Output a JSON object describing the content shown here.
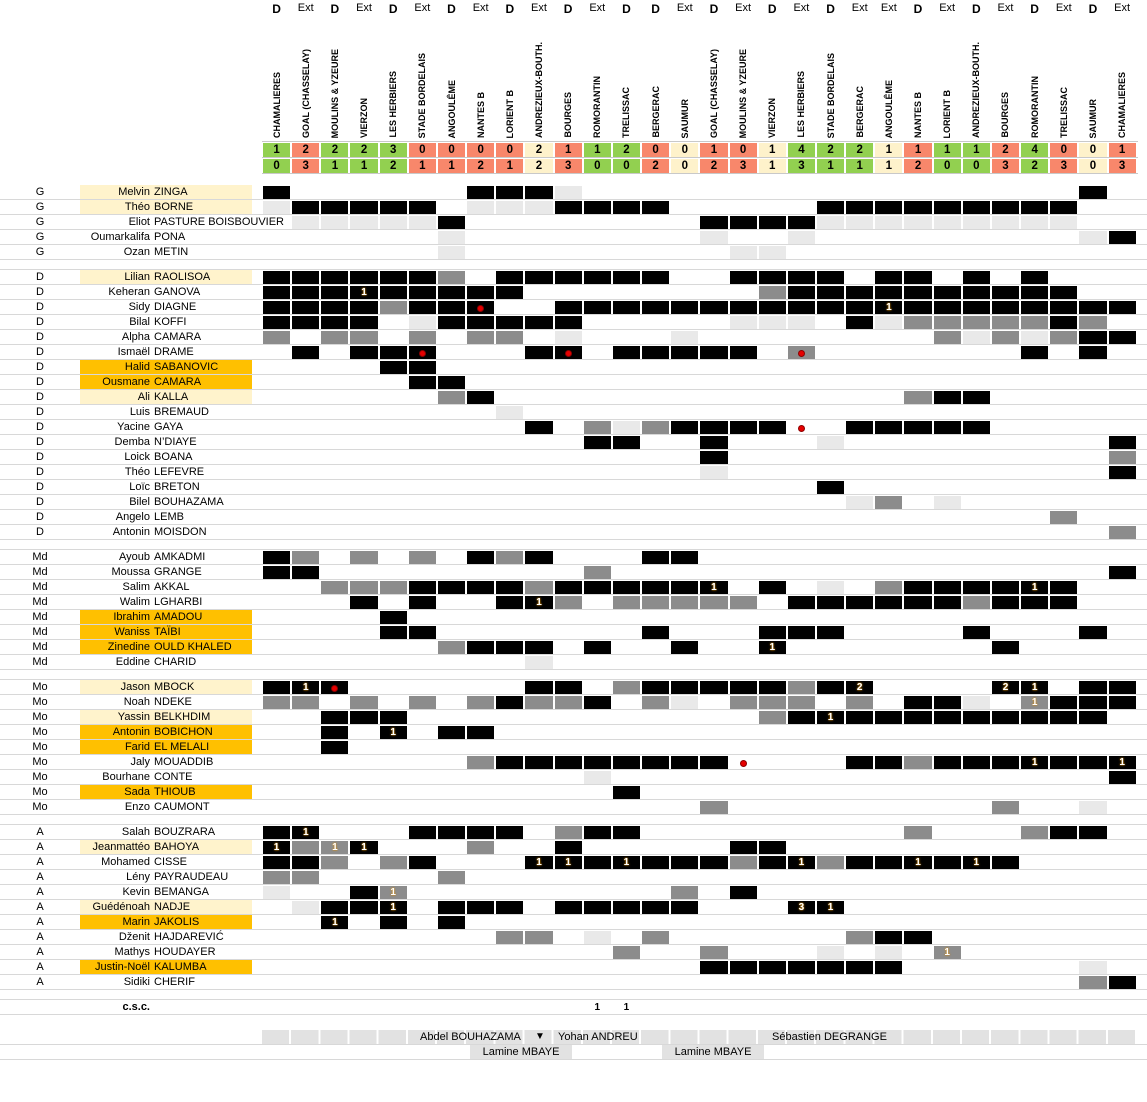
{
  "header": {
    "venue_labels": {
      "home": "D",
      "away": "Ext"
    },
    "matches": [
      {
        "venue": "D",
        "opponent": "CHAMALIERES",
        "score_for": 1,
        "score_against": 0,
        "result": "W"
      },
      {
        "venue": "Ext",
        "opponent": "GOAL (CHASSELAY)",
        "score_for": 2,
        "score_against": 3,
        "result": "L"
      },
      {
        "venue": "D",
        "opponent": "MOULINS & YZEURE",
        "score_for": 2,
        "score_against": 1,
        "result": "W"
      },
      {
        "venue": "Ext",
        "opponent": "VIERZON",
        "score_for": 2,
        "score_against": 1,
        "result": "W"
      },
      {
        "venue": "D",
        "opponent": "LES HERBIERS",
        "score_for": 3,
        "score_against": 2,
        "result": "W"
      },
      {
        "venue": "Ext",
        "opponent": "STADE BORDELAIS",
        "score_for": 0,
        "score_against": 1,
        "result": "L"
      },
      {
        "venue": "D",
        "opponent": "ANGOULÊME",
        "score_for": 0,
        "score_against": 1,
        "result": "L"
      },
      {
        "venue": "Ext",
        "opponent": "NANTES B",
        "score_for": 0,
        "score_against": 2,
        "result": "L"
      },
      {
        "venue": "D",
        "opponent": "LORIENT B",
        "score_for": 0,
        "score_against": 1,
        "result": "L"
      },
      {
        "venue": "Ext",
        "opponent": "ANDREZIEUX-BOUTH.",
        "score_for": 2,
        "score_against": 2,
        "result": "D"
      },
      {
        "venue": "D",
        "opponent": "BOURGES",
        "score_for": 1,
        "score_against": 3,
        "result": "L"
      },
      {
        "venue": "Ext",
        "opponent": "ROMORANTIN",
        "score_for": 1,
        "score_against": 0,
        "result": "W"
      },
      {
        "venue": "D",
        "opponent": "TRELISSAC",
        "score_for": 2,
        "score_against": 0,
        "result": "W"
      },
      {
        "venue": "D",
        "opponent": "BERGERAC",
        "score_for": 0,
        "score_against": 2,
        "result": "L"
      },
      {
        "venue": "Ext",
        "opponent": "SAUMUR",
        "score_for": 0,
        "score_against": 0,
        "result": "D"
      },
      {
        "venue": "D",
        "opponent": "GOAL (CHASSELAY)",
        "score_for": 1,
        "score_against": 2,
        "result": "L"
      },
      {
        "venue": "Ext",
        "opponent": "MOULINS & YZEURE",
        "score_for": 0,
        "score_against": 3,
        "result": "L"
      },
      {
        "venue": "D",
        "opponent": "VIERZON",
        "score_for": 1,
        "score_against": 1,
        "result": "D"
      },
      {
        "venue": "Ext",
        "opponent": "LES HERBIERS",
        "score_for": 4,
        "score_against": 3,
        "result": "W"
      },
      {
        "venue": "D",
        "opponent": "STADE BORDELAIS",
        "score_for": 2,
        "score_against": 1,
        "result": "W"
      },
      {
        "venue": "Ext",
        "opponent": "BERGERAC",
        "score_for": 2,
        "score_against": 1,
        "result": "W"
      },
      {
        "venue": "Ext",
        "opponent": "ANGOULÊME",
        "score_for": 1,
        "score_against": 1,
        "result": "D"
      },
      {
        "venue": "D",
        "opponent": "NANTES B",
        "score_for": 1,
        "score_against": 2,
        "result": "L"
      },
      {
        "venue": "Ext",
        "opponent": "LORIENT B",
        "score_for": 1,
        "score_against": 0,
        "result": "W"
      },
      {
        "venue": "D",
        "opponent": "ANDREZIEUX-BOUTH.",
        "score_for": 1,
        "score_against": 0,
        "result": "W"
      },
      {
        "venue": "Ext",
        "opponent": "BOURGES",
        "score_for": 2,
        "score_against": 3,
        "result": "L"
      },
      {
        "venue": "D",
        "opponent": "ROMORANTIN",
        "score_for": 4,
        "score_against": 2,
        "result": "W"
      },
      {
        "venue": "Ext",
        "opponent": "TRELISSAC",
        "score_for": 0,
        "score_against": 3,
        "result": "L"
      },
      {
        "venue": "D",
        "opponent": "SAUMUR",
        "score_for": 0,
        "score_against": 0,
        "result": "D"
      },
      {
        "venue": "Ext",
        "opponent": "CHAMALIERES",
        "score_for": 1,
        "score_against": 3,
        "result": "L"
      }
    ]
  },
  "cell_codes": {
    "b": "black-started",
    "g": "gray-sub-played",
    "l": "lightgray-bench",
    ".": "empty"
  },
  "colors": {
    "win": "#92D050",
    "loss": "#F8876B",
    "draw": "#FEF2CB",
    "cell_black": "#000000",
    "cell_gray": "#8C8C8C",
    "cell_light": "#E9E9E9",
    "name_cream": "#FFF3CC",
    "name_gold": "#FFC000",
    "red_card_dot": "#E60000"
  },
  "groups": [
    {
      "position": "G",
      "players": [
        {
          "first": "Melvin",
          "last": "ZINGA",
          "highlight": "cream",
          "cells": "b......bbbl.................b.",
          "goals": [],
          "reds": []
        },
        {
          "first": "Théo",
          "last": "BORNE",
          "highlight": "cream",
          "cells": "lbbbbb.lllbbbb.....bbbbbbbbb..",
          "goals": [],
          "reds": []
        },
        {
          "first": "Eliot",
          "last": "PASTURE BOISBOUVIER",
          "highlight": "none",
          "cells": ".lllllb........bbbblllllllll..",
          "goals": [],
          "reds": []
        },
        {
          "first": "Oumarkalifa",
          "last": "PONA",
          "highlight": "none",
          "cells": "......l........l..l.........lb",
          "goals": [],
          "reds": []
        },
        {
          "first": "Ozan",
          "last": "METIN",
          "highlight": "none",
          "cells": "......l.........ll............",
          "goals": [],
          "reds": []
        }
      ]
    },
    {
      "position": "D",
      "players": [
        {
          "first": "Lilian",
          "last": "RAOLISOA",
          "highlight": "cream",
          "cells": "bbbbbbg.bbbbbb..bbbb.bb.b.b...",
          "goals": [],
          "reds": []
        },
        {
          "first": "Keheran",
          "last": "GANOVA",
          "highlight": "none",
          "cells": "bbbbbbbbb........gbbbbbbbbbb..",
          "goals": [
            [
              4,
              1
            ]
          ],
          "reds": []
        },
        {
          "first": "Sidy",
          "last": "DIAGNE",
          "highlight": "none",
          "cells": "bbbbgbbb..bbbbbbbbbbbbbbbbbbbb",
          "goals": [
            [
              22,
              1
            ]
          ],
          "reds": [
            8
          ]
        },
        {
          "first": "Bilal",
          "last": "KOFFI",
          "highlight": "none",
          "cells": "bbbb.lbbbbb.....lll.blgggggbg.",
          "goals": [],
          "reds": []
        },
        {
          "first": "Alpha",
          "last": "CAMARA",
          "highlight": "none",
          "cells": "g.gg.g.gg.l...l........glglgbb",
          "goals": [],
          "reds": []
        },
        {
          "first": "Ismaël",
          "last": "DRAME",
          "highlight": "none",
          "cells": ".b.bbb...bb.bbbbb.g.......b.b.",
          "goals": [],
          "reds": [
            6,
            11,
            19
          ]
        },
        {
          "first": "Halid",
          "last": "SABANOVIC",
          "highlight": "gold",
          "cells": "....bb........................",
          "goals": [],
          "reds": []
        },
        {
          "first": "Ousmane",
          "last": "CAMARA",
          "highlight": "gold",
          "cells": ".....bb.......................",
          "goals": [],
          "reds": []
        },
        {
          "first": "Ali",
          "last": "KALLA",
          "highlight": "cream",
          "cells": "......gb..............gbb.....",
          "goals": [],
          "reds": []
        },
        {
          "first": "Luis",
          "last": "BREMAUD",
          "highlight": "none",
          "cells": "........l.....................",
          "goals": [],
          "reds": []
        },
        {
          "first": "Yacine",
          "last": "GAYA",
          "highlight": "none",
          "cells": ".........b.glgbbbb..bbbbb.....",
          "goals": [],
          "reds": [
            19
          ]
        },
        {
          "first": "Demba",
          "last": "N’DIAYE",
          "highlight": "none",
          "cells": "...........bb..b...l.........b",
          "goals": [],
          "reds": []
        },
        {
          "first": "Loick",
          "last": "BOANA",
          "highlight": "none",
          "cells": "...............b.............g",
          "goals": [],
          "reds": []
        },
        {
          "first": "Théo",
          "last": "LEFEVRE",
          "highlight": "none",
          "cells": "...............l.............b",
          "goals": [],
          "reds": []
        },
        {
          "first": "Loïc",
          "last": "BRETON",
          "highlight": "none",
          "cells": "...................b..........",
          "goals": [],
          "reds": []
        },
        {
          "first": "Bilel",
          "last": "BOUHAZAMA",
          "highlight": "none",
          "cells": "....................lg.l......",
          "goals": [],
          "reds": []
        },
        {
          "first": "Angelo",
          "last": "LEMB",
          "highlight": "none",
          "cells": "...........................g..",
          "goals": [],
          "reds": []
        },
        {
          "first": "Antonin",
          "last": "MOISDON",
          "highlight": "none",
          "cells": ".............................g",
          "goals": [],
          "reds": []
        }
      ]
    },
    {
      "position": "Md",
      "players": [
        {
          "first": "Ayoub",
          "last": "AMKADMI",
          "highlight": "none",
          "cells": "bg.g.g.bgb...bb...............",
          "goals": [],
          "reds": []
        },
        {
          "first": "Moussa",
          "last": "GRANGE",
          "highlight": "none",
          "cells": "bb.........g.................b",
          "goals": [],
          "reds": []
        },
        {
          "first": "Salim",
          "last": "AKKAL",
          "highlight": "none",
          "cells": "..gggbbbbgbbbbbb.b.l.gbbbbbb..",
          "goals": [
            [
              16,
              1
            ],
            [
              27,
              1
            ]
          ],
          "reds": []
        },
        {
          "first": "Walim",
          "last": "LGHARBI",
          "highlight": "none",
          "cells": "...b.b..bbg.ggggg.bbbbbbgbbb..",
          "goals": [
            [
              10,
              1
            ]
          ],
          "reds": []
        },
        {
          "first": "Ibrahim",
          "last": "AMADOU",
          "highlight": "gold",
          "cells": "....b.........................",
          "goals": [],
          "reds": []
        },
        {
          "first": "Waniss",
          "last": "TAÏBI",
          "highlight": "gold",
          "cells": "....bb.......b...bbb....b...b.",
          "goals": [],
          "reds": []
        },
        {
          "first": "Zinedine",
          "last": "OULD KHALED",
          "highlight": "gold",
          "cells": "......gbbb.b..b..b.......b....",
          "goals": [
            [
              18,
              1
            ]
          ],
          "reds": []
        },
        {
          "first": "Eddine",
          "last": "CHARID",
          "highlight": "none",
          "cells": ".........l....................",
          "goals": [],
          "reds": []
        }
      ]
    },
    {
      "position": "Mo",
      "players": [
        {
          "first": "Jason",
          "last": "MBOCK",
          "highlight": "cream",
          "cells": "bbb......bb.gbbbbbgbb....bb.bb",
          "goals": [
            [
              2,
              1
            ],
            [
              21,
              2
            ],
            [
              26,
              2
            ],
            [
              27,
              1
            ]
          ],
          "reds": [
            3
          ]
        },
        {
          "first": "Noah",
          "last": "NDEKE",
          "highlight": "none",
          "cells": "gg.g.g.gbggb.gl.ggg.g.bbl.gbbb",
          "goals": [
            [
              27,
              1
            ]
          ],
          "reds": []
        },
        {
          "first": "Yassin",
          "last": "BELKHDIM",
          "highlight": "cream",
          "cells": "..bbb............gbbbbbbbbbbb.",
          "goals": [
            [
              20,
              1
            ]
          ],
          "reds": []
        },
        {
          "first": "Antonin",
          "last": "BOBICHON",
          "highlight": "gold",
          "cells": "..b.b.bb......................",
          "goals": [
            [
              5,
              1
            ]
          ],
          "reds": []
        },
        {
          "first": "Farid",
          "last": "EL MELALI",
          "highlight": "gold",
          "cells": "..b...........................",
          "goals": [],
          "reds": []
        },
        {
          "first": "Jaly",
          "last": "MOUADDIB",
          "highlight": "none",
          "cells": ".......gbbbbbbbb....bbgbbbbbbb",
          "goals": [
            [
              27,
              1
            ],
            [
              30,
              1
            ]
          ],
          "reds": [
            17
          ]
        },
        {
          "first": "Bourhane",
          "last": "CONTE",
          "highlight": "none",
          "cells": "...........l.................b",
          "goals": [],
          "reds": []
        },
        {
          "first": "Sada",
          "last": "THIOUB",
          "highlight": "gold",
          "cells": "............b.................",
          "goals": [],
          "reds": []
        },
        {
          "first": "Enzo",
          "last": "CAUMONT",
          "highlight": "none",
          "cells": "...............g.........g..l.",
          "goals": [],
          "reds": []
        }
      ]
    },
    {
      "position": "A",
      "players": [
        {
          "first": "Salah",
          "last": "BOUZRARA",
          "highlight": "none",
          "cells": "bb...bbbb.gbb.........g...gbb.",
          "goals": [
            [
              2,
              1
            ]
          ],
          "reds": []
        },
        {
          "first": "Jeanmattéo",
          "last": "BAHOYA",
          "highlight": "cream",
          "cells": "bggb...g..b.....bb............",
          "goals": [
            [
              1,
              1
            ],
            [
              3,
              1
            ],
            [
              4,
              1
            ]
          ],
          "reds": []
        },
        {
          "first": "Mohamed",
          "last": "CISSE",
          "highlight": "none",
          "cells": "bbg.gb...bbbbbbbgbbgbbbbbb....",
          "goals": [
            [
              10,
              1
            ],
            [
              11,
              1
            ],
            [
              13,
              1
            ],
            [
              19,
              1
            ],
            [
              23,
              1
            ],
            [
              25,
              1
            ]
          ],
          "reds": []
        },
        {
          "first": "Lény",
          "last": "PAYRAUDEAU",
          "highlight": "none",
          "cells": "gg....g.......................",
          "goals": [],
          "reds": []
        },
        {
          "first": "Kevin",
          "last": "BEMANGA",
          "highlight": "none",
          "cells": "l..bg.........g.b.............",
          "goals": [
            [
              5,
              1
            ]
          ],
          "reds": []
        },
        {
          "first": "Guédénoah",
          "last": "NADJE",
          "highlight": "cream",
          "cells": ".lbbb.bbb.bbbbb...bb..........",
          "goals": [
            [
              5,
              1
            ],
            [
              19,
              3
            ],
            [
              20,
              1
            ]
          ],
          "reds": []
        },
        {
          "first": "Marin",
          "last": "JAKOLIS",
          "highlight": "gold",
          "cells": "..b.b.b.......................",
          "goals": [
            [
              3,
              1
            ]
          ],
          "reds": []
        },
        {
          "first": "Dženit",
          "last": "HAJDAREVIĆ",
          "highlight": "none",
          "cells": "........gg.l.g......gbb.......",
          "goals": [],
          "reds": []
        },
        {
          "first": "Mathys",
          "last": "HOUDAYER",
          "highlight": "none",
          "cells": "............g..g...l.l.g......",
          "goals": [
            [
              24,
              1
            ]
          ],
          "reds": []
        },
        {
          "first": "Justin-Noël",
          "last": "KALUMBA",
          "highlight": "gold",
          "cells": "...............bbbbbbb......l.",
          "goals": [],
          "reds": []
        },
        {
          "first": "Sidiki",
          "last": "CHERIF",
          "highlight": "none",
          "cells": "............................gb",
          "goals": [],
          "reds": []
        }
      ]
    }
  ],
  "own_goals": {
    "label": "c.s.c.",
    "goals": [
      [
        12,
        1
      ],
      [
        13,
        1
      ]
    ]
  },
  "coaches": {
    "head1": "Abdel BOUHAZAMA",
    "change_icon": "▼",
    "head2": "Yohan ANDREU",
    "head3": "Sébastien DEGRANGE",
    "assistant1": "Lamine MBAYE",
    "assistant2": "Lamine MBAYE"
  }
}
